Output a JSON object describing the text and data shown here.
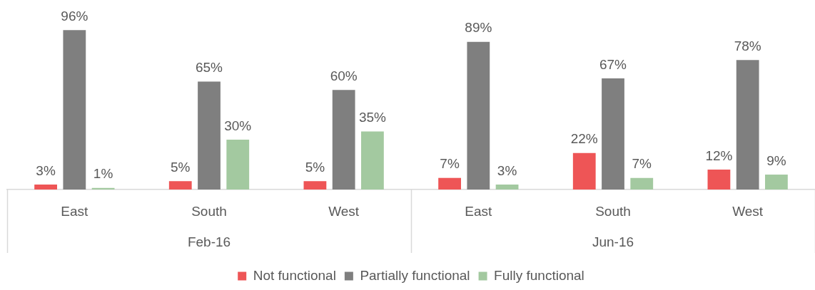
{
  "chart_data": {
    "type": "bar",
    "categories": [
      "East",
      "South",
      "West",
      "East",
      "South",
      "West"
    ],
    "annotations": [
      "Feb-16",
      "Jun-16"
    ],
    "series": [
      {
        "name": "Not functional",
        "color": "#ee5556",
        "values": [
          3,
          5,
          5,
          7,
          22,
          12
        ],
        "value_labels": [
          "3%",
          "5%",
          "5%",
          "7%",
          "22%",
          "12%"
        ]
      },
      {
        "name": "Partially functional",
        "color": "#7f7f7f",
        "values": [
          96,
          65,
          60,
          89,
          67,
          78
        ],
        "value_labels": [
          "96%",
          "65%",
          "60%",
          "89%",
          "67%",
          "78%"
        ]
      },
      {
        "name": "Fully functional",
        "color": "#a3c9a0",
        "values": [
          1,
          30,
          35,
          3,
          7,
          9
        ],
        "value_labels": [
          "1%",
          "30%",
          "35%",
          "3%",
          "7%",
          "9%"
        ]
      }
    ],
    "legend": "bottom",
    "grid": false
  }
}
